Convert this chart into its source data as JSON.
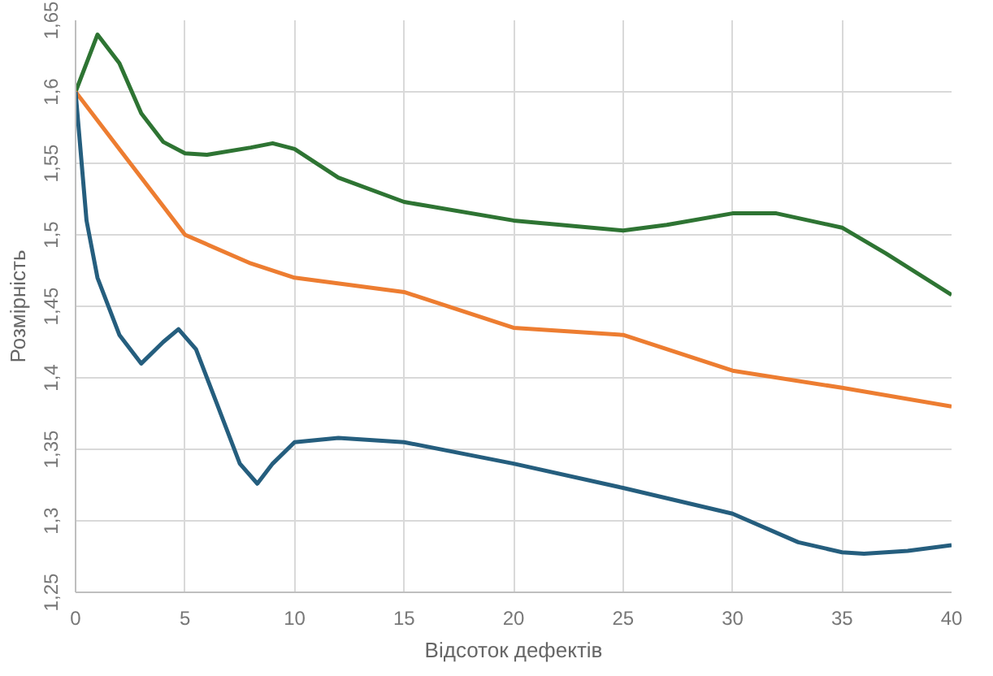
{
  "chart_data": {
    "type": "line",
    "xlabel": "Відсоток дефектів",
    "ylabel": "Розмірність",
    "xlim": [
      0,
      40
    ],
    "xticks": [
      0,
      5,
      10,
      15,
      20,
      25,
      30,
      35,
      40
    ],
    "ylim": [
      1.25,
      1.65
    ],
    "yticks": [
      {
        "value": 1.25,
        "label": "1,25"
      },
      {
        "value": 1.3,
        "label": "1,3"
      },
      {
        "value": 1.35,
        "label": "1,35"
      },
      {
        "value": 1.4,
        "label": "1,4"
      },
      {
        "value": 1.45,
        "label": "1,45"
      },
      {
        "value": 1.5,
        "label": "1,5"
      },
      {
        "value": 1.55,
        "label": "1,55"
      },
      {
        "value": 1.6,
        "label": "1,6"
      },
      {
        "value": 1.65,
        "label": "1,65"
      }
    ],
    "grid": true,
    "marker": "none",
    "line_style": "solid",
    "series": [
      {
        "color": "#2e7433",
        "x": [
          0,
          1,
          2,
          3,
          4,
          5,
          6,
          8,
          9,
          10,
          12,
          15,
          20,
          25,
          27,
          30,
          32,
          35,
          37,
          40
        ],
        "values": [
          1.6,
          1.64,
          1.62,
          1.585,
          1.565,
          1.557,
          1.556,
          1.561,
          1.564,
          1.56,
          1.54,
          1.523,
          1.51,
          1.503,
          1.507,
          1.515,
          1.515,
          1.505,
          1.487,
          1.458
        ]
      },
      {
        "color": "#ed7d31",
        "x": [
          0,
          2,
          5,
          8,
          10,
          15,
          20,
          25,
          30,
          35,
          40
        ],
        "values": [
          1.6,
          1.56,
          1.5,
          1.48,
          1.47,
          1.46,
          1.435,
          1.43,
          1.405,
          1.393,
          1.38
        ]
      },
      {
        "color": "#255e7e",
        "x": [
          0,
          0.5,
          1,
          2,
          3,
          4,
          4.7,
          5.5,
          6.5,
          7.5,
          8.3,
          9,
          10,
          12,
          15,
          20,
          25,
          30,
          33,
          35,
          36,
          38,
          40
        ],
        "values": [
          1.6,
          1.51,
          1.47,
          1.43,
          1.41,
          1.425,
          1.434,
          1.42,
          1.38,
          1.34,
          1.326,
          1.34,
          1.355,
          1.358,
          1.355,
          1.34,
          1.323,
          1.305,
          1.285,
          1.278,
          1.277,
          1.279,
          1.283
        ]
      }
    ]
  }
}
